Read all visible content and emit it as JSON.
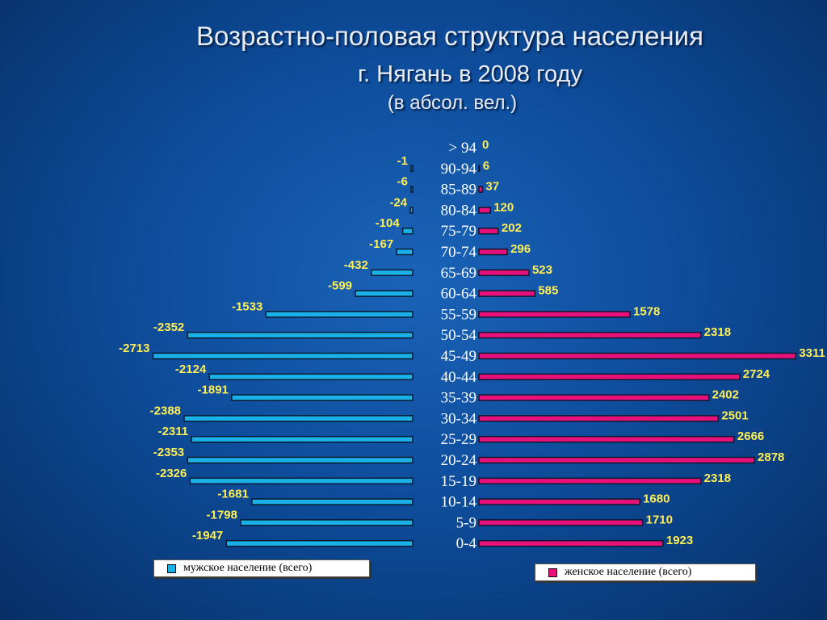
{
  "chart_data": {
    "type": "bar",
    "title": "Возрастно-половая структура населения",
    "subtitle": "г. Нягань в 2008 году",
    "unit_note": "(в абсол. вел.)",
    "categories": [
      "> 94",
      "90-94",
      "85-89",
      "80-84",
      "75-79",
      "70-74",
      "65-69",
      "60-64",
      "55-59",
      "50-54",
      "45-49",
      "40-44",
      "35-39",
      "30-34",
      "25-29",
      "20-24",
      "15-19",
      "10-14",
      "5-9",
      "0-4"
    ],
    "series": [
      {
        "name": "мужское население (всего)",
        "color": "#1ab0e8",
        "values": [
          null,
          -1,
          -6,
          -24,
          -104,
          -167,
          -432,
          -599,
          -1533,
          -2352,
          -2713,
          -2124,
          -1891,
          -2388,
          -2311,
          -2353,
          -2326,
          -1681,
          -1798,
          -1947
        ]
      },
      {
        "name": "женское население (всего)",
        "color": "#e8107a",
        "values": [
          0,
          6,
          37,
          120,
          202,
          296,
          523,
          585,
          1578,
          2318,
          3311,
          2724,
          2402,
          2501,
          2666,
          2878,
          2318,
          1680,
          1710,
          1923
        ]
      }
    ],
    "male_labels": [
      "",
      "-1",
      "-6",
      "-24",
      "-104",
      "-167",
      "-432",
      "-599",
      "-1533",
      "-2352",
      "-2713",
      "-2124",
      "-1891",
      "-2388",
      "-2311",
      "-2353",
      "-2326",
      "-1681",
      "-1798",
      "-1947"
    ],
    "female_labels": [
      "0",
      "6",
      "37",
      "120",
      "202",
      "296",
      "523",
      "585",
      "1578",
      "2318",
      "3311",
      "2724",
      "2402",
      "2501",
      "2666",
      "2878",
      "2318",
      "1680",
      "1710",
      "1923"
    ]
  }
}
